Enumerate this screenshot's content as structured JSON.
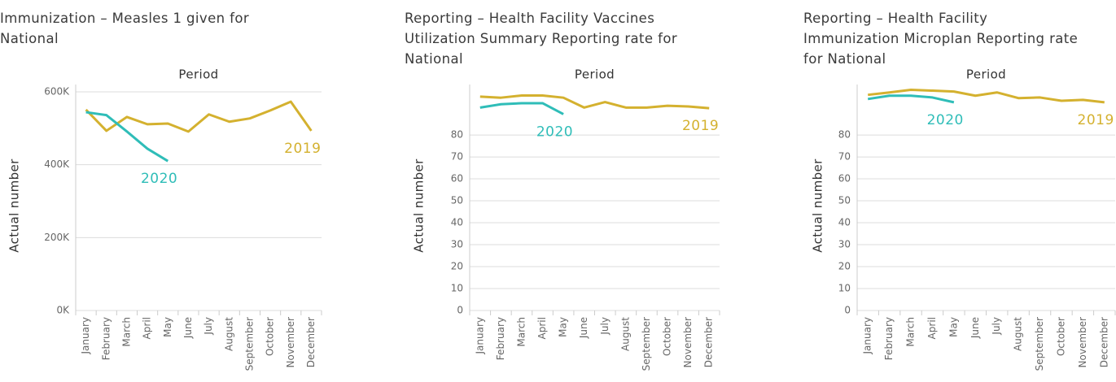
{
  "chart_data": [
    {
      "type": "line",
      "title": "Immunization – Measles 1 given for National",
      "x_label": "Period",
      "y_label": "Actual number",
      "categories": [
        "January",
        "February",
        "March",
        "April",
        "May",
        "June",
        "July",
        "August",
        "September",
        "October",
        "November",
        "December"
      ],
      "series": [
        {
          "name": "2019",
          "color": "#d4b12f",
          "values": [
            551000,
            493000,
            531000,
            511000,
            513000,
            491000,
            538000,
            518000,
            527000,
            549000,
            573000,
            493000
          ]
        },
        {
          "name": "2020",
          "color": "#2fbdb8",
          "values": [
            544000,
            536000,
            491000,
            444000,
            410000,
            null,
            null,
            null,
            null,
            null,
            null,
            null
          ]
        }
      ],
      "ylim": [
        0,
        620000
      ],
      "yticks": [
        {
          "value": 0,
          "label": "0K"
        },
        {
          "value": 200000,
          "label": "200K"
        },
        {
          "value": 400000,
          "label": "400K"
        },
        {
          "value": 600000,
          "label": "600K"
        }
      ],
      "grid": true
    },
    {
      "type": "line",
      "title": "Reporting – Health Facility Vaccines Utilization Summary Reporting rate for National",
      "x_label": "Period",
      "y_label": "Actual number",
      "categories": [
        "January",
        "February",
        "March",
        "April",
        "May",
        "June",
        "July",
        "August",
        "September",
        "October",
        "November",
        "December"
      ],
      "series": [
        {
          "name": "2019",
          "color": "#d4b12f",
          "values": [
            97.5,
            97,
            98,
            98,
            97,
            92.5,
            95,
            92.5,
            92.5,
            93.3,
            93,
            92.2
          ]
        },
        {
          "name": "2020",
          "color": "#2fbdb8",
          "values": [
            92.5,
            94,
            94.5,
            94.5,
            89.5,
            null,
            null,
            null,
            null,
            null,
            null,
            null
          ]
        }
      ],
      "ylim": [
        0,
        103
      ],
      "yticks": [
        0,
        10,
        20,
        30,
        40,
        50,
        60,
        70,
        80
      ],
      "grid": true
    },
    {
      "type": "line",
      "title": "Reporting – Health Facility Immunization Microplan Reporting rate for National",
      "x_label": "Period",
      "y_label": "Actual number",
      "categories": [
        "January",
        "February",
        "March",
        "April",
        "May",
        "June",
        "July",
        "August",
        "September",
        "October",
        "November",
        "December"
      ],
      "series": [
        {
          "name": "2019",
          "color": "#d4b12f",
          "values": [
            98.3,
            99.4,
            100.6,
            100.2,
            99.8,
            97.9,
            99.4,
            96.8,
            97.1,
            95.6,
            96,
            94.9
          ]
        },
        {
          "name": "2020",
          "color": "#2fbdb8",
          "values": [
            96.4,
            97.9,
            97.9,
            97.1,
            94.9,
            null,
            null,
            null,
            null,
            null,
            null,
            null
          ]
        }
      ],
      "ylim": [
        0,
        103
      ],
      "yticks": [
        0,
        10,
        20,
        30,
        40,
        50,
        60,
        70,
        80
      ],
      "grid": true
    }
  ]
}
